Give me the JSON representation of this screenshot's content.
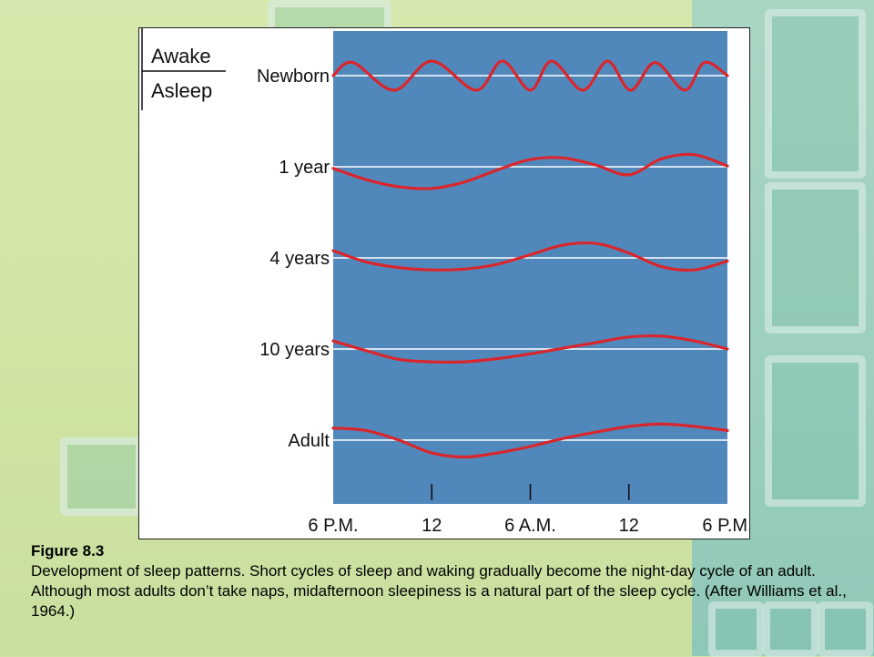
{
  "colors": {
    "plot_background": "#5188bb",
    "curve": "#d9262d",
    "baseline": "#ffffff",
    "slide_green": "#cfe3a6",
    "slide_teal": "#9ccfbd"
  },
  "legend": {
    "top": "Awake",
    "bottom": "Asleep"
  },
  "caption": {
    "title": "Figure 8.3",
    "text": "Development of sleep patterns. Short cycles of sleep and waking gradually become the night-day cycle of an adult. Although most adults don’t take naps, midafternoon sleepiness is a natural part of the sleep cycle. (After Williams et al., 1964.)"
  },
  "chart_data": {
    "type": "line",
    "x": [
      0,
      6,
      12,
      18,
      24
    ],
    "x_tick_labels": [
      "6 P.M.",
      "12",
      "6 A.M.",
      "12",
      "6 P.M."
    ],
    "xlim": [
      0,
      24
    ],
    "ylabel_top": "Awake",
    "ylabel_bottom": "Asleep",
    "series": [
      {
        "name": "Newborn",
        "x": [
          0,
          1.2,
          3.7,
          6.0,
          8.7,
          10.3,
          12.0,
          13.3,
          15.2,
          16.7,
          18.1,
          19.6,
          21.4,
          22.6,
          24
        ],
        "y": [
          0,
          0.9,
          -1.0,
          1.0,
          -1.0,
          1.0,
          -1.0,
          1.0,
          -1.0,
          1.0,
          -1.0,
          0.9,
          -1.0,
          0.9,
          0
        ]
      },
      {
        "name": "1 year",
        "x": [
          0,
          2,
          4,
          6,
          8,
          10,
          12,
          14,
          16,
          18,
          20,
          22,
          24
        ],
        "y": [
          -0.1,
          -0.8,
          -1.25,
          -1.35,
          -0.95,
          -0.2,
          0.45,
          0.55,
          0.1,
          -0.5,
          0.5,
          0.75,
          0.05
        ]
      },
      {
        "name": "4 years",
        "x": [
          0,
          2,
          4,
          6,
          8,
          10,
          12,
          14,
          16,
          18,
          20,
          22,
          24
        ],
        "y": [
          0.45,
          -0.25,
          -0.6,
          -0.75,
          -0.7,
          -0.4,
          0.2,
          0.8,
          0.9,
          0.3,
          -0.55,
          -0.75,
          -0.2
        ]
      },
      {
        "name": "10 years",
        "x": [
          0,
          2,
          4,
          6,
          8,
          10,
          12,
          14,
          16,
          18,
          20,
          22,
          24
        ],
        "y": [
          0.5,
          -0.1,
          -0.65,
          -0.8,
          -0.8,
          -0.6,
          -0.3,
          0.05,
          0.4,
          0.75,
          0.8,
          0.5,
          0.0
        ]
      },
      {
        "name": "Adult",
        "x": [
          0,
          2,
          4,
          6,
          8,
          10,
          12,
          14,
          16,
          18,
          20,
          22,
          24
        ],
        "y": [
          0.75,
          0.6,
          0.0,
          -0.8,
          -1.05,
          -0.8,
          -0.4,
          0.1,
          0.5,
          0.85,
          1.0,
          0.85,
          0.6
        ]
      }
    ]
  }
}
